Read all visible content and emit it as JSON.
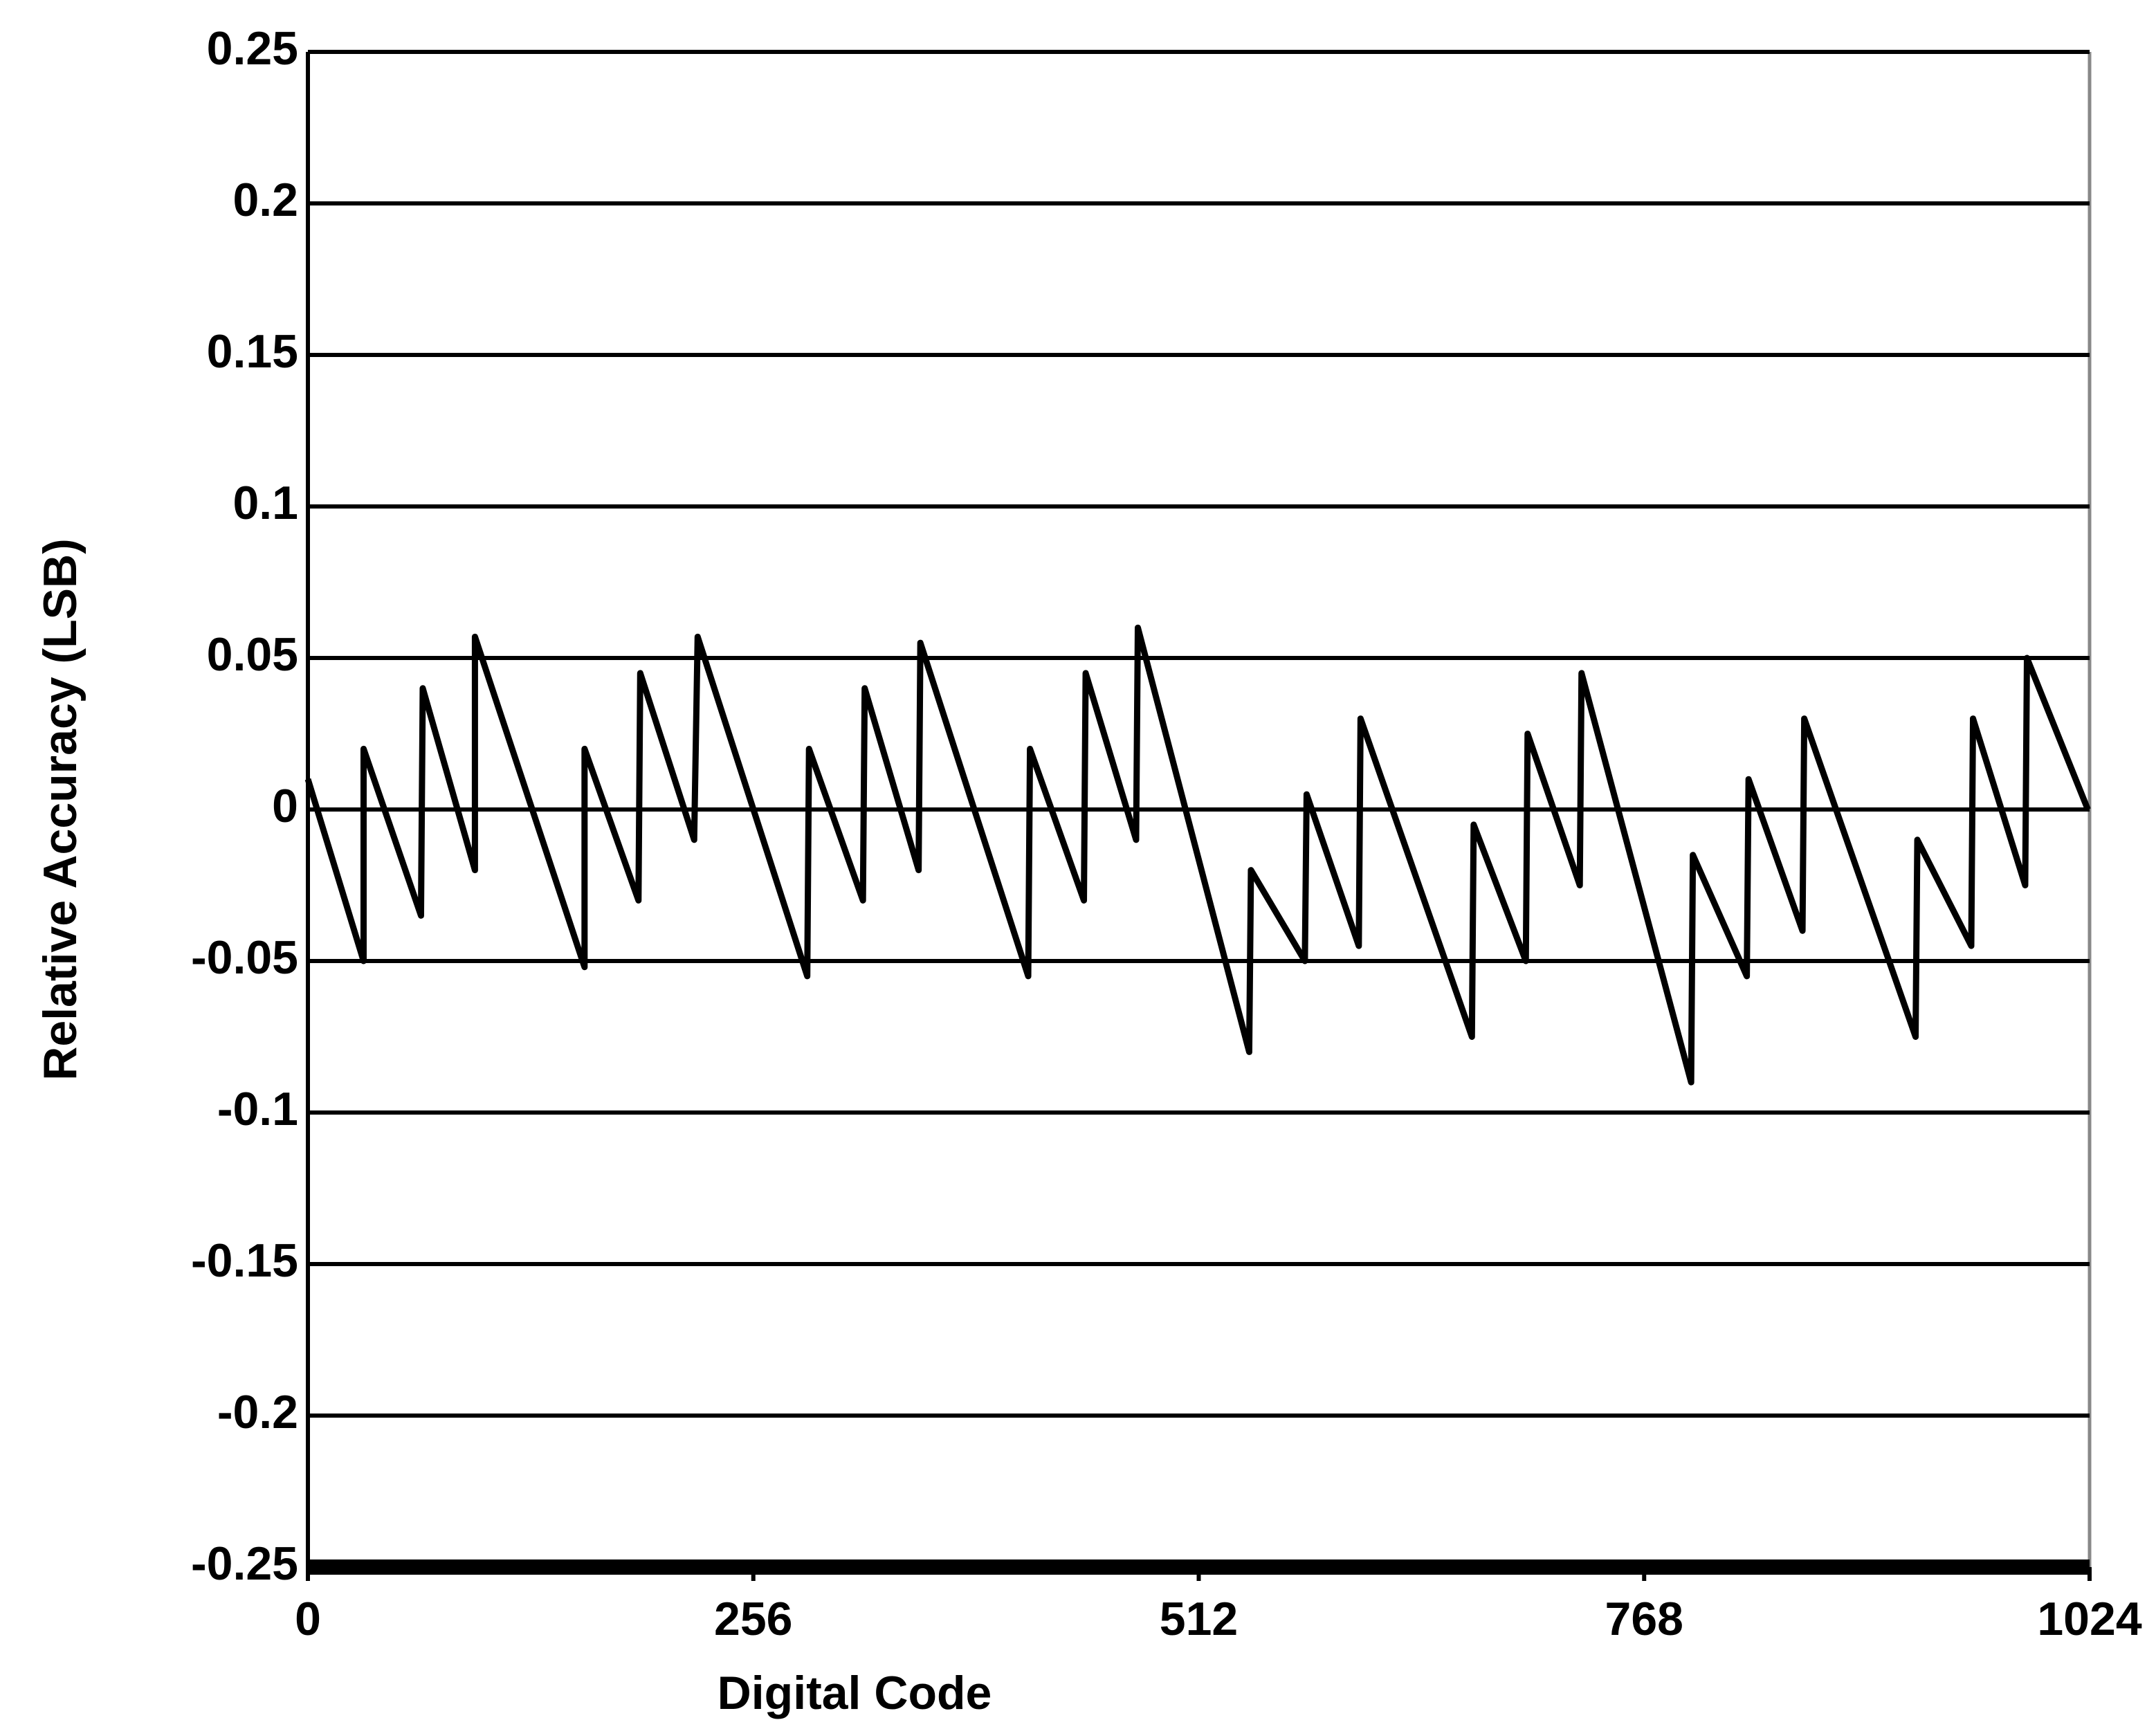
{
  "chart_data": {
    "type": "line",
    "x_label": "Digital Code",
    "y_label": "Relative Accuracy (LSB)",
    "xlim": [
      0,
      1024
    ],
    "xticks": [
      0,
      256,
      512,
      768,
      1024
    ],
    "ylim": [
      -0.25,
      0.25
    ],
    "yticks": [
      0.25,
      0.2,
      0.15,
      0.1,
      0.05,
      0,
      -0.05,
      -0.1,
      -0.15,
      -0.2,
      -0.25
    ],
    "grid": true,
    "series": [
      {
        "color": "#000000",
        "x": [
          0,
          32,
          32,
          65,
          66,
          96,
          96,
          159,
          159,
          190,
          191,
          222,
          224,
          287,
          288,
          319,
          320,
          351,
          352,
          414,
          415,
          446,
          447,
          476,
          477,
          541,
          542,
          573,
          574,
          604,
          605,
          669,
          670,
          700,
          701,
          731,
          732,
          795,
          796,
          827,
          828,
          859,
          860,
          924,
          925,
          956,
          957,
          987,
          988,
          1023
        ],
        "values": [
          0.01,
          -0.05,
          0.02,
          -0.035,
          0.04,
          -0.02,
          0.057,
          -0.052,
          0.02,
          -0.03,
          0.045,
          -0.01,
          0.057,
          -0.055,
          0.02,
          -0.03,
          0.04,
          -0.02,
          0.055,
          -0.055,
          0.02,
          -0.03,
          0.045,
          -0.01,
          0.06,
          -0.08,
          -0.02,
          -0.05,
          0.005,
          -0.045,
          0.03,
          -0.075,
          -0.005,
          -0.05,
          0.025,
          -0.025,
          0.045,
          -0.09,
          -0.015,
          -0.055,
          0.01,
          -0.04,
          0.03,
          -0.075,
          -0.01,
          -0.045,
          0.03,
          -0.025,
          0.05,
          0
        ]
      }
    ]
  }
}
